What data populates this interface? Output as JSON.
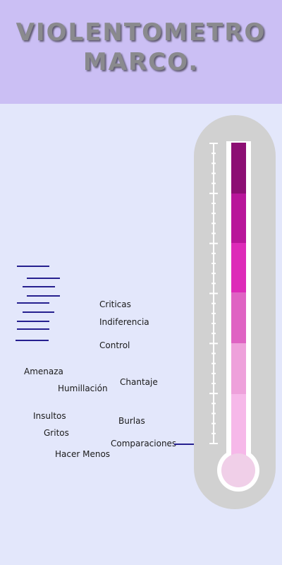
{
  "title_lines": [
    "VIOLENTOMETRO",
    "MARCO."
  ],
  "labels": {
    "criticas": "Criticas",
    "indiferencia": "Indiferencia",
    "control": "Control",
    "amenaza": "Amenaza",
    "humillacion": "Humillación",
    "chantaje": "Chantaje",
    "insultos": "Insultos",
    "gritos": "Gritos",
    "burlas": "Burlas",
    "comparaciones": "Comparaciones",
    "hacer_menos": "Hacer Menos"
  },
  "colors": {
    "background": "#e3e7fb",
    "header": "#cbbff4",
    "thermometer_body": "#d1d1d1",
    "segments": [
      "#8c0f73",
      "#b8169a",
      "#dd2bb8",
      "#df63c3",
      "#eea1db",
      "#f6b8e9"
    ],
    "bulb": "#f0cfe8",
    "marker_lines": "#26208f"
  }
}
